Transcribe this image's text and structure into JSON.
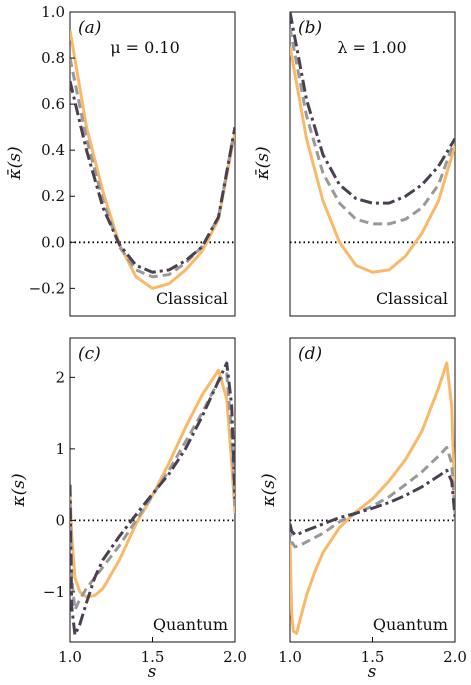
{
  "colors": {
    "orange": "#f9b96a",
    "gray": "#999999",
    "dark": "#4a4052",
    "zero": "#000000"
  },
  "chart_data": [
    {
      "id": "a",
      "type": "line",
      "panel_label": "(a)",
      "param_text": "μ = 0.10",
      "regime": "Classical",
      "ylabel": "κ̄(s)",
      "xlabel": "",
      "xlim": [
        1.0,
        2.0
      ],
      "ylim": [
        -0.32,
        1.0
      ],
      "yticks": [
        -0.2,
        0.0,
        0.2,
        0.4,
        0.6,
        0.8,
        1.0
      ],
      "ytick_labels": [
        "−0.2",
        "0.0",
        "0.2",
        "0.4",
        "0.6",
        "0.8",
        "1.0"
      ],
      "zero_line": 0,
      "series": [
        {
          "style": "solid",
          "color": "#f9b96a",
          "x": [
            1.0,
            1.1,
            1.2,
            1.3,
            1.4,
            1.5,
            1.6,
            1.7,
            1.8,
            1.9,
            2.0
          ],
          "y": [
            0.92,
            0.5,
            0.22,
            -0.01,
            -0.15,
            -0.2,
            -0.18,
            -0.12,
            -0.04,
            0.1,
            0.48
          ]
        },
        {
          "style": "dashed",
          "color": "#999999",
          "x": [
            1.0,
            1.1,
            1.2,
            1.3,
            1.4,
            1.5,
            1.6,
            1.7,
            1.8,
            1.9,
            2.0
          ],
          "y": [
            0.8,
            0.45,
            0.18,
            -0.02,
            -0.12,
            -0.15,
            -0.14,
            -0.09,
            -0.02,
            0.11,
            0.5
          ]
        },
        {
          "style": "dashdot",
          "color": "#4a4052",
          "x": [
            1.0,
            1.1,
            1.2,
            1.3,
            1.4,
            1.5,
            1.6,
            1.7,
            1.8,
            1.9,
            2.0
          ],
          "y": [
            0.7,
            0.4,
            0.15,
            -0.01,
            -0.1,
            -0.13,
            -0.12,
            -0.08,
            -0.02,
            0.11,
            0.5
          ]
        }
      ]
    },
    {
      "id": "b",
      "type": "line",
      "panel_label": "(b)",
      "param_text": "λ = 1.00",
      "regime": "Classical",
      "ylabel": "κ̄(s)",
      "xlabel": "",
      "xlim": [
        1.0,
        2.0
      ],
      "ylim": [
        -0.32,
        1.0
      ],
      "zero_line": 0,
      "series": [
        {
          "style": "solid",
          "color": "#f9b96a",
          "x": [
            1.0,
            1.1,
            1.2,
            1.3,
            1.4,
            1.5,
            1.6,
            1.7,
            1.8,
            1.9,
            2.0
          ],
          "y": [
            0.85,
            0.45,
            0.18,
            0.0,
            -0.1,
            -0.13,
            -0.12,
            -0.06,
            0.04,
            0.18,
            0.42
          ]
        },
        {
          "style": "dashed",
          "color": "#999999",
          "x": [
            1.0,
            1.1,
            1.2,
            1.3,
            1.4,
            1.5,
            1.6,
            1.7,
            1.8,
            1.9,
            2.0
          ],
          "y": [
            0.93,
            0.55,
            0.3,
            0.17,
            0.1,
            0.08,
            0.08,
            0.1,
            0.15,
            0.25,
            0.45
          ]
        },
        {
          "style": "dashdot",
          "color": "#4a4052",
          "x": [
            1.0,
            1.1,
            1.2,
            1.3,
            1.4,
            1.5,
            1.6,
            1.7,
            1.8,
            1.9,
            2.0
          ],
          "y": [
            1.0,
            0.62,
            0.38,
            0.25,
            0.19,
            0.17,
            0.17,
            0.2,
            0.25,
            0.33,
            0.45
          ]
        }
      ]
    },
    {
      "id": "c",
      "type": "line",
      "panel_label": "(c)",
      "param_text": "",
      "regime": "Quantum",
      "ylabel": "κ(s)",
      "xlabel": "s",
      "xlim": [
        1.0,
        2.0
      ],
      "ylim": [
        -1.7,
        2.55
      ],
      "yticks": [
        -1,
        0,
        1,
        2
      ],
      "ytick_labels": [
        "−1",
        "0",
        "1",
        "2"
      ],
      "xticks": [
        1.0,
        1.5,
        2.0
      ],
      "xtick_labels": [
        "1.0",
        "1.5",
        "2.0"
      ],
      "zero_line": 0,
      "series": [
        {
          "style": "solid",
          "color": "#f9b96a",
          "x": [
            1.0,
            1.01,
            1.03,
            1.06,
            1.1,
            1.15,
            1.2,
            1.3,
            1.4,
            1.5,
            1.6,
            1.7,
            1.8,
            1.9,
            1.95,
            1.98,
            2.0
          ],
          "y": [
            0.4,
            -0.2,
            -0.8,
            -1.0,
            -1.07,
            -1.05,
            -0.95,
            -0.55,
            -0.05,
            0.35,
            0.8,
            1.3,
            1.75,
            2.1,
            1.7,
            0.8,
            0.1
          ]
        },
        {
          "style": "dashed",
          "color": "#999999",
          "x": [
            1.0,
            1.01,
            1.03,
            1.06,
            1.1,
            1.15,
            1.2,
            1.3,
            1.4,
            1.5,
            1.6,
            1.7,
            1.8,
            1.9,
            1.95,
            1.98,
            2.0
          ],
          "y": [
            0.3,
            -0.8,
            -1.25,
            -1.1,
            -0.95,
            -0.8,
            -0.65,
            -0.35,
            0.0,
            0.35,
            0.7,
            1.1,
            1.5,
            1.95,
            2.05,
            1.2,
            0.2
          ]
        },
        {
          "style": "dashdot",
          "color": "#4a4052",
          "x": [
            1.0,
            1.01,
            1.03,
            1.06,
            1.1,
            1.15,
            1.2,
            1.3,
            1.4,
            1.5,
            1.6,
            1.7,
            1.8,
            1.9,
            1.95,
            1.98,
            2.0
          ],
          "y": [
            0.5,
            -1.2,
            -1.6,
            -1.45,
            -1.15,
            -0.8,
            -0.55,
            -0.22,
            0.08,
            0.37,
            0.65,
            1.0,
            1.45,
            1.95,
            2.2,
            1.6,
            0.3
          ]
        }
      ]
    },
    {
      "id": "d",
      "type": "line",
      "panel_label": "(d)",
      "param_text": "",
      "regime": "Quantum",
      "ylabel": "κ(s)",
      "xlabel": "s",
      "xlim": [
        1.0,
        2.0
      ],
      "ylim": [
        -1.7,
        2.55
      ],
      "xticks": [
        1.0,
        1.5,
        2.0
      ],
      "xtick_labels": [
        "1.0",
        "1.5",
        "2.0"
      ],
      "zero_line": 0,
      "series": [
        {
          "style": "solid",
          "color": "#f9b96a",
          "x": [
            1.0,
            1.01,
            1.02,
            1.04,
            1.06,
            1.1,
            1.15,
            1.2,
            1.3,
            1.4,
            1.5,
            1.6,
            1.7,
            1.8,
            1.9,
            1.95,
            1.98,
            2.0
          ],
          "y": [
            -0.3,
            -1.3,
            -1.55,
            -1.58,
            -1.4,
            -1.05,
            -0.72,
            -0.45,
            -0.1,
            0.12,
            0.3,
            0.55,
            0.85,
            1.25,
            1.85,
            2.2,
            1.6,
            0.2
          ]
        },
        {
          "style": "dashed",
          "color": "#999999",
          "x": [
            1.0,
            1.01,
            1.03,
            1.06,
            1.1,
            1.2,
            1.3,
            1.4,
            1.5,
            1.6,
            1.7,
            1.8,
            1.9,
            1.95,
            1.98,
            2.0
          ],
          "y": [
            -0.1,
            -0.3,
            -0.37,
            -0.35,
            -0.3,
            -0.18,
            -0.02,
            0.1,
            0.2,
            0.33,
            0.5,
            0.68,
            0.9,
            1.02,
            0.8,
            0.1
          ]
        },
        {
          "style": "dashdot",
          "color": "#4a4052",
          "x": [
            1.0,
            1.01,
            1.03,
            1.06,
            1.1,
            1.2,
            1.3,
            1.4,
            1.5,
            1.6,
            1.7,
            1.8,
            1.9,
            1.95,
            1.98,
            2.0
          ],
          "y": [
            -0.05,
            -0.15,
            -0.2,
            -0.18,
            -0.14,
            -0.05,
            0.04,
            0.1,
            0.17,
            0.25,
            0.35,
            0.47,
            0.62,
            0.7,
            0.55,
            0.05
          ]
        }
      ]
    }
  ]
}
